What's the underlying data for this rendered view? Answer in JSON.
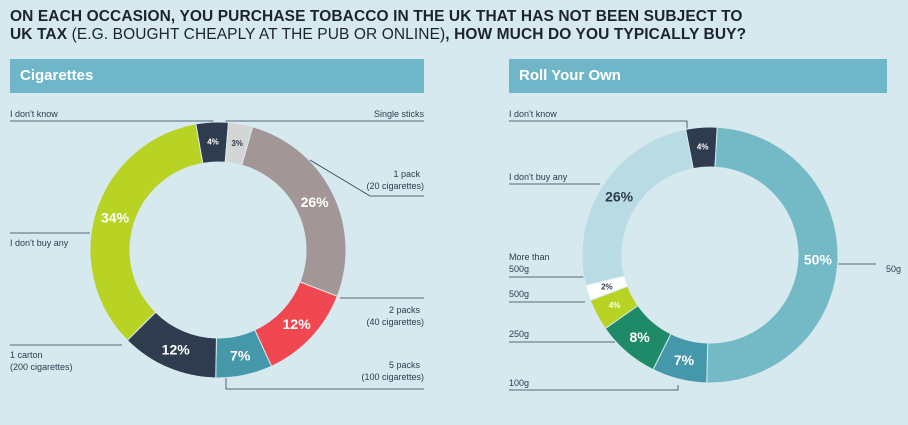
{
  "title": {
    "part1": "ON EACH OCCASION, YOU PURCHASE TOBACCO IN THE UK THAT HAS NOT BEEN SUBJECT TO",
    "part2_bold": "UK TAX",
    "part2_thin": " (E.G. BOUGHT CHEAPLY AT THE PUB OR ONLINE)",
    "part2_end": ", HOW MUCH DO YOU TYPICALLY BUY?"
  },
  "chart_data": [
    {
      "type": "pie",
      "title": "Cigarettes",
      "slices": [
        {
          "label": "I don't know",
          "value": 4,
          "display": "4%",
          "color": "#2f3c4f"
        },
        {
          "label": "Single sticks",
          "value": 3,
          "display": "3%",
          "color": "#d4d5d5"
        },
        {
          "label": "1 pack (20 cigarettes)",
          "value": 26,
          "display": "26%",
          "color": "#a39696"
        },
        {
          "label": "2 packs (40 cigarettes)",
          "value": 12,
          "display": "12%",
          "color": "#f04750"
        },
        {
          "label": "5 packs (100 cigarettes)",
          "value": 7,
          "display": "7%",
          "color": "#4597aa"
        },
        {
          "label": "1 carton (200 cigarettes)",
          "value": 12,
          "display": "12%",
          "color": "#2f3c4f"
        },
        {
          "label": "I don't buy any",
          "value": 34,
          "display": "34%",
          "color": "#b9d325"
        }
      ]
    },
    {
      "type": "pie",
      "title": "Roll Your Own",
      "slices": [
        {
          "label": "I don't know",
          "value": 4,
          "display": "4%",
          "color": "#2f3c4f"
        },
        {
          "label": "50g",
          "value": 50,
          "display": "50%",
          "color": "#74b9c6"
        },
        {
          "label": "100g",
          "value": 7,
          "display": "7%",
          "color": "#4597aa"
        },
        {
          "label": "250g",
          "value": 8,
          "display": "8%",
          "color": "#1f8a67"
        },
        {
          "label": "500g",
          "value": 4,
          "display": "4%",
          "color": "#b9d325"
        },
        {
          "label": "More than 500g",
          "value": 2,
          "display": "2%",
          "color": "#ffffff"
        },
        {
          "label": "I don't buy any",
          "value": 26,
          "display": "26%",
          "color": "#b9dce4"
        }
      ]
    }
  ],
  "labels": {
    "cig": {
      "dontknow": "I don't know",
      "single": "Single sticks",
      "pack1_a": "1 pack",
      "pack1_b": "(20 cigarettes)",
      "pack2_a": "2 packs",
      "pack2_b": "(40 cigarettes)",
      "pack5_a": "5 packs",
      "pack5_b": "(100 cigarettes)",
      "carton_a": "1 carton",
      "carton_b": "(200 cigarettes)",
      "dontbuy": "I don't buy any"
    },
    "ryo": {
      "dontknow": "I don't know",
      "dontbuy": "I don't buy any",
      "more_a": "More than",
      "more_b": "500g",
      "g500": "500g",
      "g250": "250g",
      "g100": "100g",
      "g50": "50g"
    }
  }
}
